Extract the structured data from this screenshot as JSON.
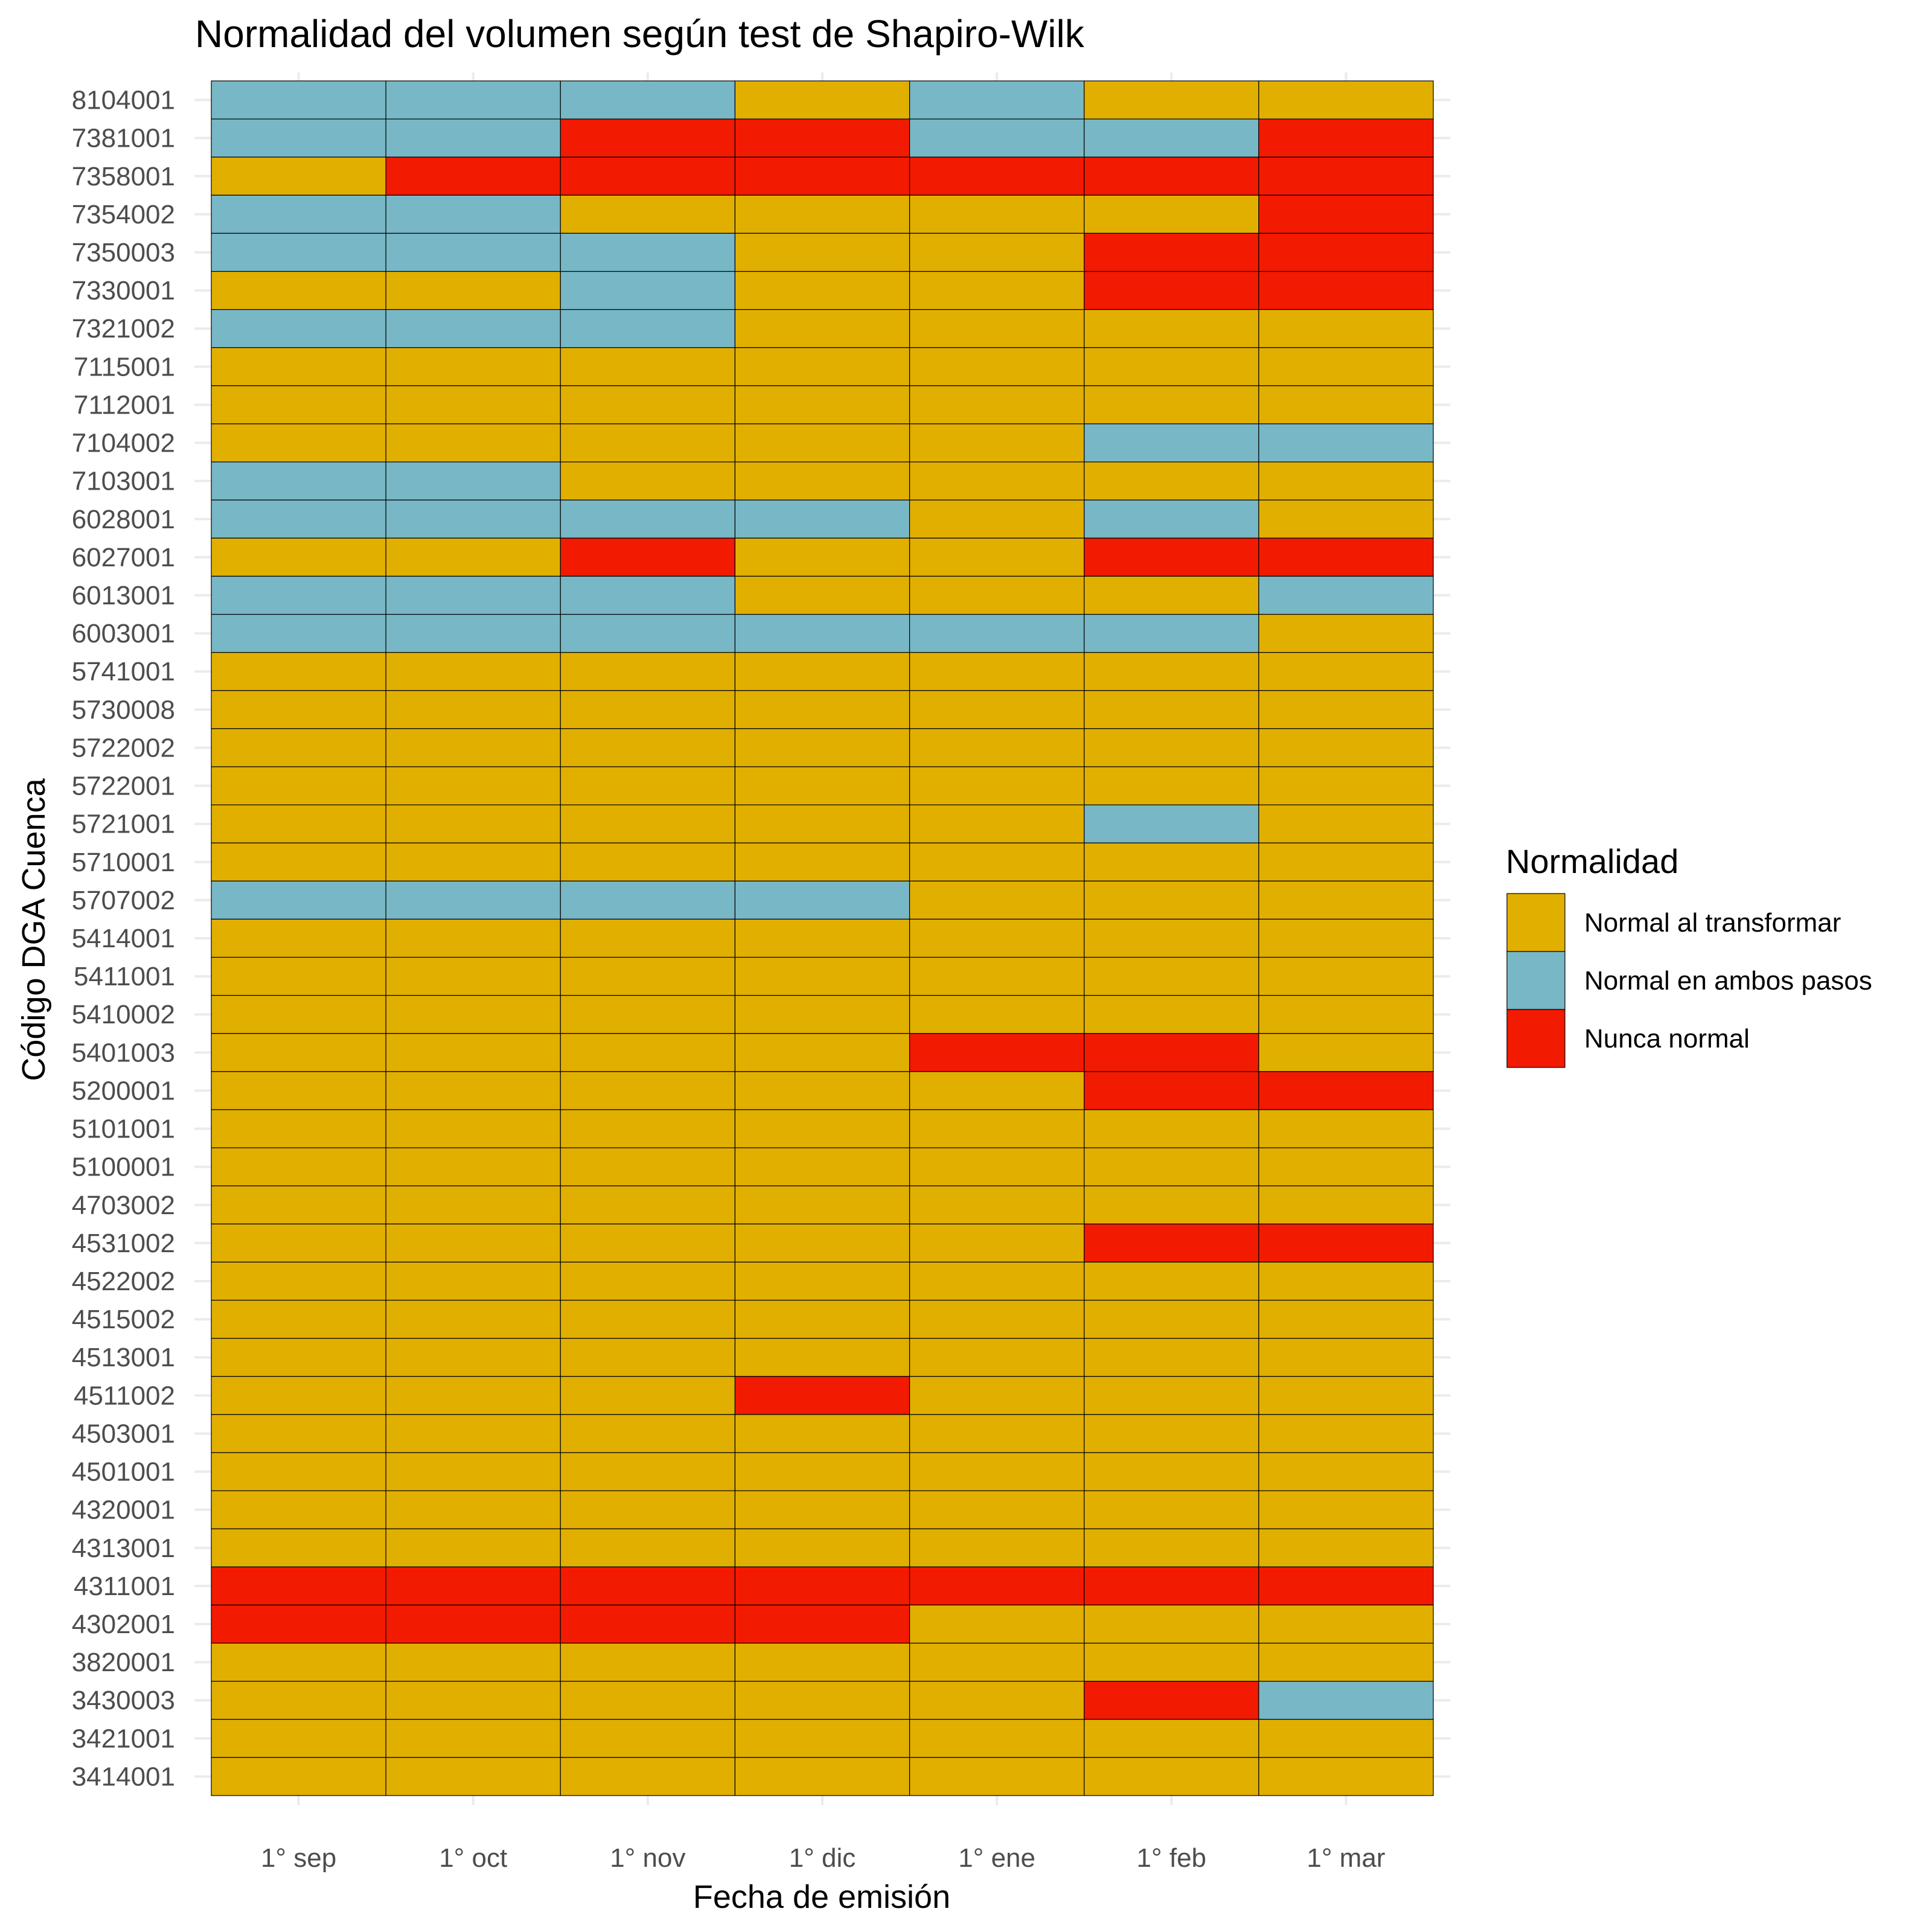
{
  "chart_data": {
    "type": "heatmap",
    "title": "Normalidad del volumen según test de Shapiro-Wilk",
    "xlabel": "Fecha de emisión",
    "ylabel": "Código DGA Cuenca",
    "x_categories": [
      "1° sep",
      "1° oct",
      "1° nov",
      "1° dic",
      "1° ene",
      "1° feb",
      "1° mar"
    ],
    "legend": {
      "title": "Normalidad",
      "position": "right",
      "entries": [
        {
          "key": "T",
          "label": "Normal al transformar",
          "color": "#E1AF00"
        },
        {
          "key": "A",
          "label": "Normal en ambos pasos",
          "color": "#78B7C5"
        },
        {
          "key": "N",
          "label": "Nunca normal",
          "color": "#F21A00"
        }
      ]
    },
    "grid": true,
    "rows": [
      {
        "code": "8104001",
        "values": [
          "A",
          "A",
          "A",
          "T",
          "A",
          "T",
          "T"
        ]
      },
      {
        "code": "7381001",
        "values": [
          "A",
          "A",
          "N",
          "N",
          "A",
          "A",
          "N"
        ]
      },
      {
        "code": "7358001",
        "values": [
          "T",
          "N",
          "N",
          "N",
          "N",
          "N",
          "N"
        ]
      },
      {
        "code": "7354002",
        "values": [
          "A",
          "A",
          "T",
          "T",
          "T",
          "T",
          "N"
        ]
      },
      {
        "code": "7350003",
        "values": [
          "A",
          "A",
          "A",
          "T",
          "T",
          "N",
          "N"
        ]
      },
      {
        "code": "7330001",
        "values": [
          "T",
          "T",
          "A",
          "T",
          "T",
          "N",
          "N"
        ]
      },
      {
        "code": "7321002",
        "values": [
          "A",
          "A",
          "A",
          "T",
          "T",
          "T",
          "T"
        ]
      },
      {
        "code": "7115001",
        "values": [
          "T",
          "T",
          "T",
          "T",
          "T",
          "T",
          "T"
        ]
      },
      {
        "code": "7112001",
        "values": [
          "T",
          "T",
          "T",
          "T",
          "T",
          "T",
          "T"
        ]
      },
      {
        "code": "7104002",
        "values": [
          "T",
          "T",
          "T",
          "T",
          "T",
          "A",
          "A"
        ]
      },
      {
        "code": "7103001",
        "values": [
          "A",
          "A",
          "T",
          "T",
          "T",
          "T",
          "T"
        ]
      },
      {
        "code": "6028001",
        "values": [
          "A",
          "A",
          "A",
          "A",
          "T",
          "A",
          "T"
        ]
      },
      {
        "code": "6027001",
        "values": [
          "T",
          "T",
          "N",
          "T",
          "T",
          "N",
          "N"
        ]
      },
      {
        "code": "6013001",
        "values": [
          "A",
          "A",
          "A",
          "T",
          "T",
          "T",
          "A"
        ]
      },
      {
        "code": "6003001",
        "values": [
          "A",
          "A",
          "A",
          "A",
          "A",
          "A",
          "T"
        ]
      },
      {
        "code": "5741001",
        "values": [
          "T",
          "T",
          "T",
          "T",
          "T",
          "T",
          "T"
        ]
      },
      {
        "code": "5730008",
        "values": [
          "T",
          "T",
          "T",
          "T",
          "T",
          "T",
          "T"
        ]
      },
      {
        "code": "5722002",
        "values": [
          "T",
          "T",
          "T",
          "T",
          "T",
          "T",
          "T"
        ]
      },
      {
        "code": "5722001",
        "values": [
          "T",
          "T",
          "T",
          "T",
          "T",
          "T",
          "T"
        ]
      },
      {
        "code": "5721001",
        "values": [
          "T",
          "T",
          "T",
          "T",
          "T",
          "A",
          "T"
        ]
      },
      {
        "code": "5710001",
        "values": [
          "T",
          "T",
          "T",
          "T",
          "T",
          "T",
          "T"
        ]
      },
      {
        "code": "5707002",
        "values": [
          "A",
          "A",
          "A",
          "A",
          "T",
          "T",
          "T"
        ]
      },
      {
        "code": "5414001",
        "values": [
          "T",
          "T",
          "T",
          "T",
          "T",
          "T",
          "T"
        ]
      },
      {
        "code": "5411001",
        "values": [
          "T",
          "T",
          "T",
          "T",
          "T",
          "T",
          "T"
        ]
      },
      {
        "code": "5410002",
        "values": [
          "T",
          "T",
          "T",
          "T",
          "T",
          "T",
          "T"
        ]
      },
      {
        "code": "5401003",
        "values": [
          "T",
          "T",
          "T",
          "T",
          "N",
          "N",
          "T"
        ]
      },
      {
        "code": "5200001",
        "values": [
          "T",
          "T",
          "T",
          "T",
          "T",
          "N",
          "N"
        ]
      },
      {
        "code": "5101001",
        "values": [
          "T",
          "T",
          "T",
          "T",
          "T",
          "T",
          "T"
        ]
      },
      {
        "code": "5100001",
        "values": [
          "T",
          "T",
          "T",
          "T",
          "T",
          "T",
          "T"
        ]
      },
      {
        "code": "4703002",
        "values": [
          "T",
          "T",
          "T",
          "T",
          "T",
          "T",
          "T"
        ]
      },
      {
        "code": "4531002",
        "values": [
          "T",
          "T",
          "T",
          "T",
          "T",
          "N",
          "N"
        ]
      },
      {
        "code": "4522002",
        "values": [
          "T",
          "T",
          "T",
          "T",
          "T",
          "T",
          "T"
        ]
      },
      {
        "code": "4515002",
        "values": [
          "T",
          "T",
          "T",
          "T",
          "T",
          "T",
          "T"
        ]
      },
      {
        "code": "4513001",
        "values": [
          "T",
          "T",
          "T",
          "T",
          "T",
          "T",
          "T"
        ]
      },
      {
        "code": "4511002",
        "values": [
          "T",
          "T",
          "T",
          "N",
          "T",
          "T",
          "T"
        ]
      },
      {
        "code": "4503001",
        "values": [
          "T",
          "T",
          "T",
          "T",
          "T",
          "T",
          "T"
        ]
      },
      {
        "code": "4501001",
        "values": [
          "T",
          "T",
          "T",
          "T",
          "T",
          "T",
          "T"
        ]
      },
      {
        "code": "4320001",
        "values": [
          "T",
          "T",
          "T",
          "T",
          "T",
          "T",
          "T"
        ]
      },
      {
        "code": "4313001",
        "values": [
          "T",
          "T",
          "T",
          "T",
          "T",
          "T",
          "T"
        ]
      },
      {
        "code": "4311001",
        "values": [
          "N",
          "N",
          "N",
          "N",
          "N",
          "N",
          "N"
        ]
      },
      {
        "code": "4302001",
        "values": [
          "N",
          "N",
          "N",
          "N",
          "T",
          "T",
          "T"
        ]
      },
      {
        "code": "3820001",
        "values": [
          "T",
          "T",
          "T",
          "T",
          "T",
          "T",
          "T"
        ]
      },
      {
        "code": "3430003",
        "values": [
          "T",
          "T",
          "T",
          "T",
          "T",
          "N",
          "A"
        ]
      },
      {
        "code": "3421001",
        "values": [
          "T",
          "T",
          "T",
          "T",
          "T",
          "T",
          "T"
        ]
      },
      {
        "code": "3414001",
        "values": [
          "T",
          "T",
          "T",
          "T",
          "T",
          "T",
          "T"
        ]
      }
    ]
  }
}
